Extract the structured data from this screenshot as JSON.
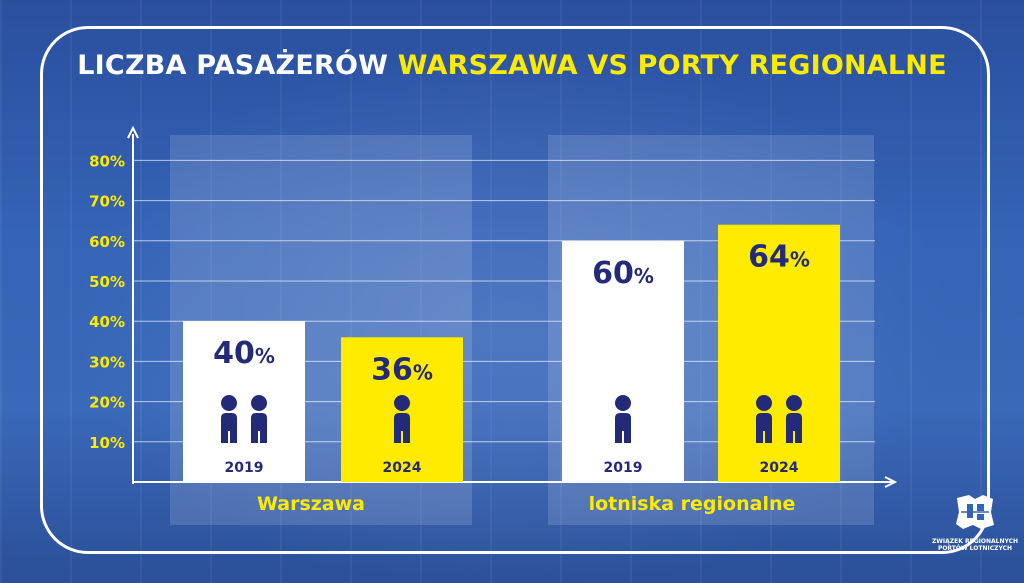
{
  "title": {
    "part1": "LICZBA PASAŻERÓW",
    "part2": "WARSZAWA VS PORTY REGIONALNE"
  },
  "logo": {
    "line1": "ZWIĄZEK REGIONALNYCH",
    "line2": "PORTÓW LOTNICZYCH"
  },
  "colors": {
    "yellow": "#ffeb00",
    "navy": "#232a78",
    "white": "#ffffff",
    "grid": "#ffffff"
  },
  "chart_data": {
    "type": "bar",
    "title": "LICZBA PASAŻERÓW WARSZAWA VS PORTY REGIONALNE",
    "y_ticks": [
      "10%",
      "20%",
      "30%",
      "40%",
      "50%",
      "60%",
      "70%",
      "80%"
    ],
    "ylim": [
      0,
      80
    ],
    "groups": [
      {
        "name": "Warszawa",
        "bars": [
          {
            "year": "2019",
            "value": 40,
            "label_num": "40",
            "label_unit": "%",
            "color": "#ffffff",
            "people": 2
          },
          {
            "year": "2024",
            "value": 36,
            "label_num": "36",
            "label_unit": "%",
            "color": "#ffeb00",
            "people": 1
          }
        ]
      },
      {
        "name": "lotniska regionalne",
        "bars": [
          {
            "year": "2019",
            "value": 60,
            "label_num": "60",
            "label_unit": "%",
            "color": "#ffffff",
            "people": 1
          },
          {
            "year": "2024",
            "value": 64,
            "label_num": "64",
            "label_unit": "%",
            "color": "#ffeb00",
            "people": 2
          }
        ]
      }
    ]
  }
}
